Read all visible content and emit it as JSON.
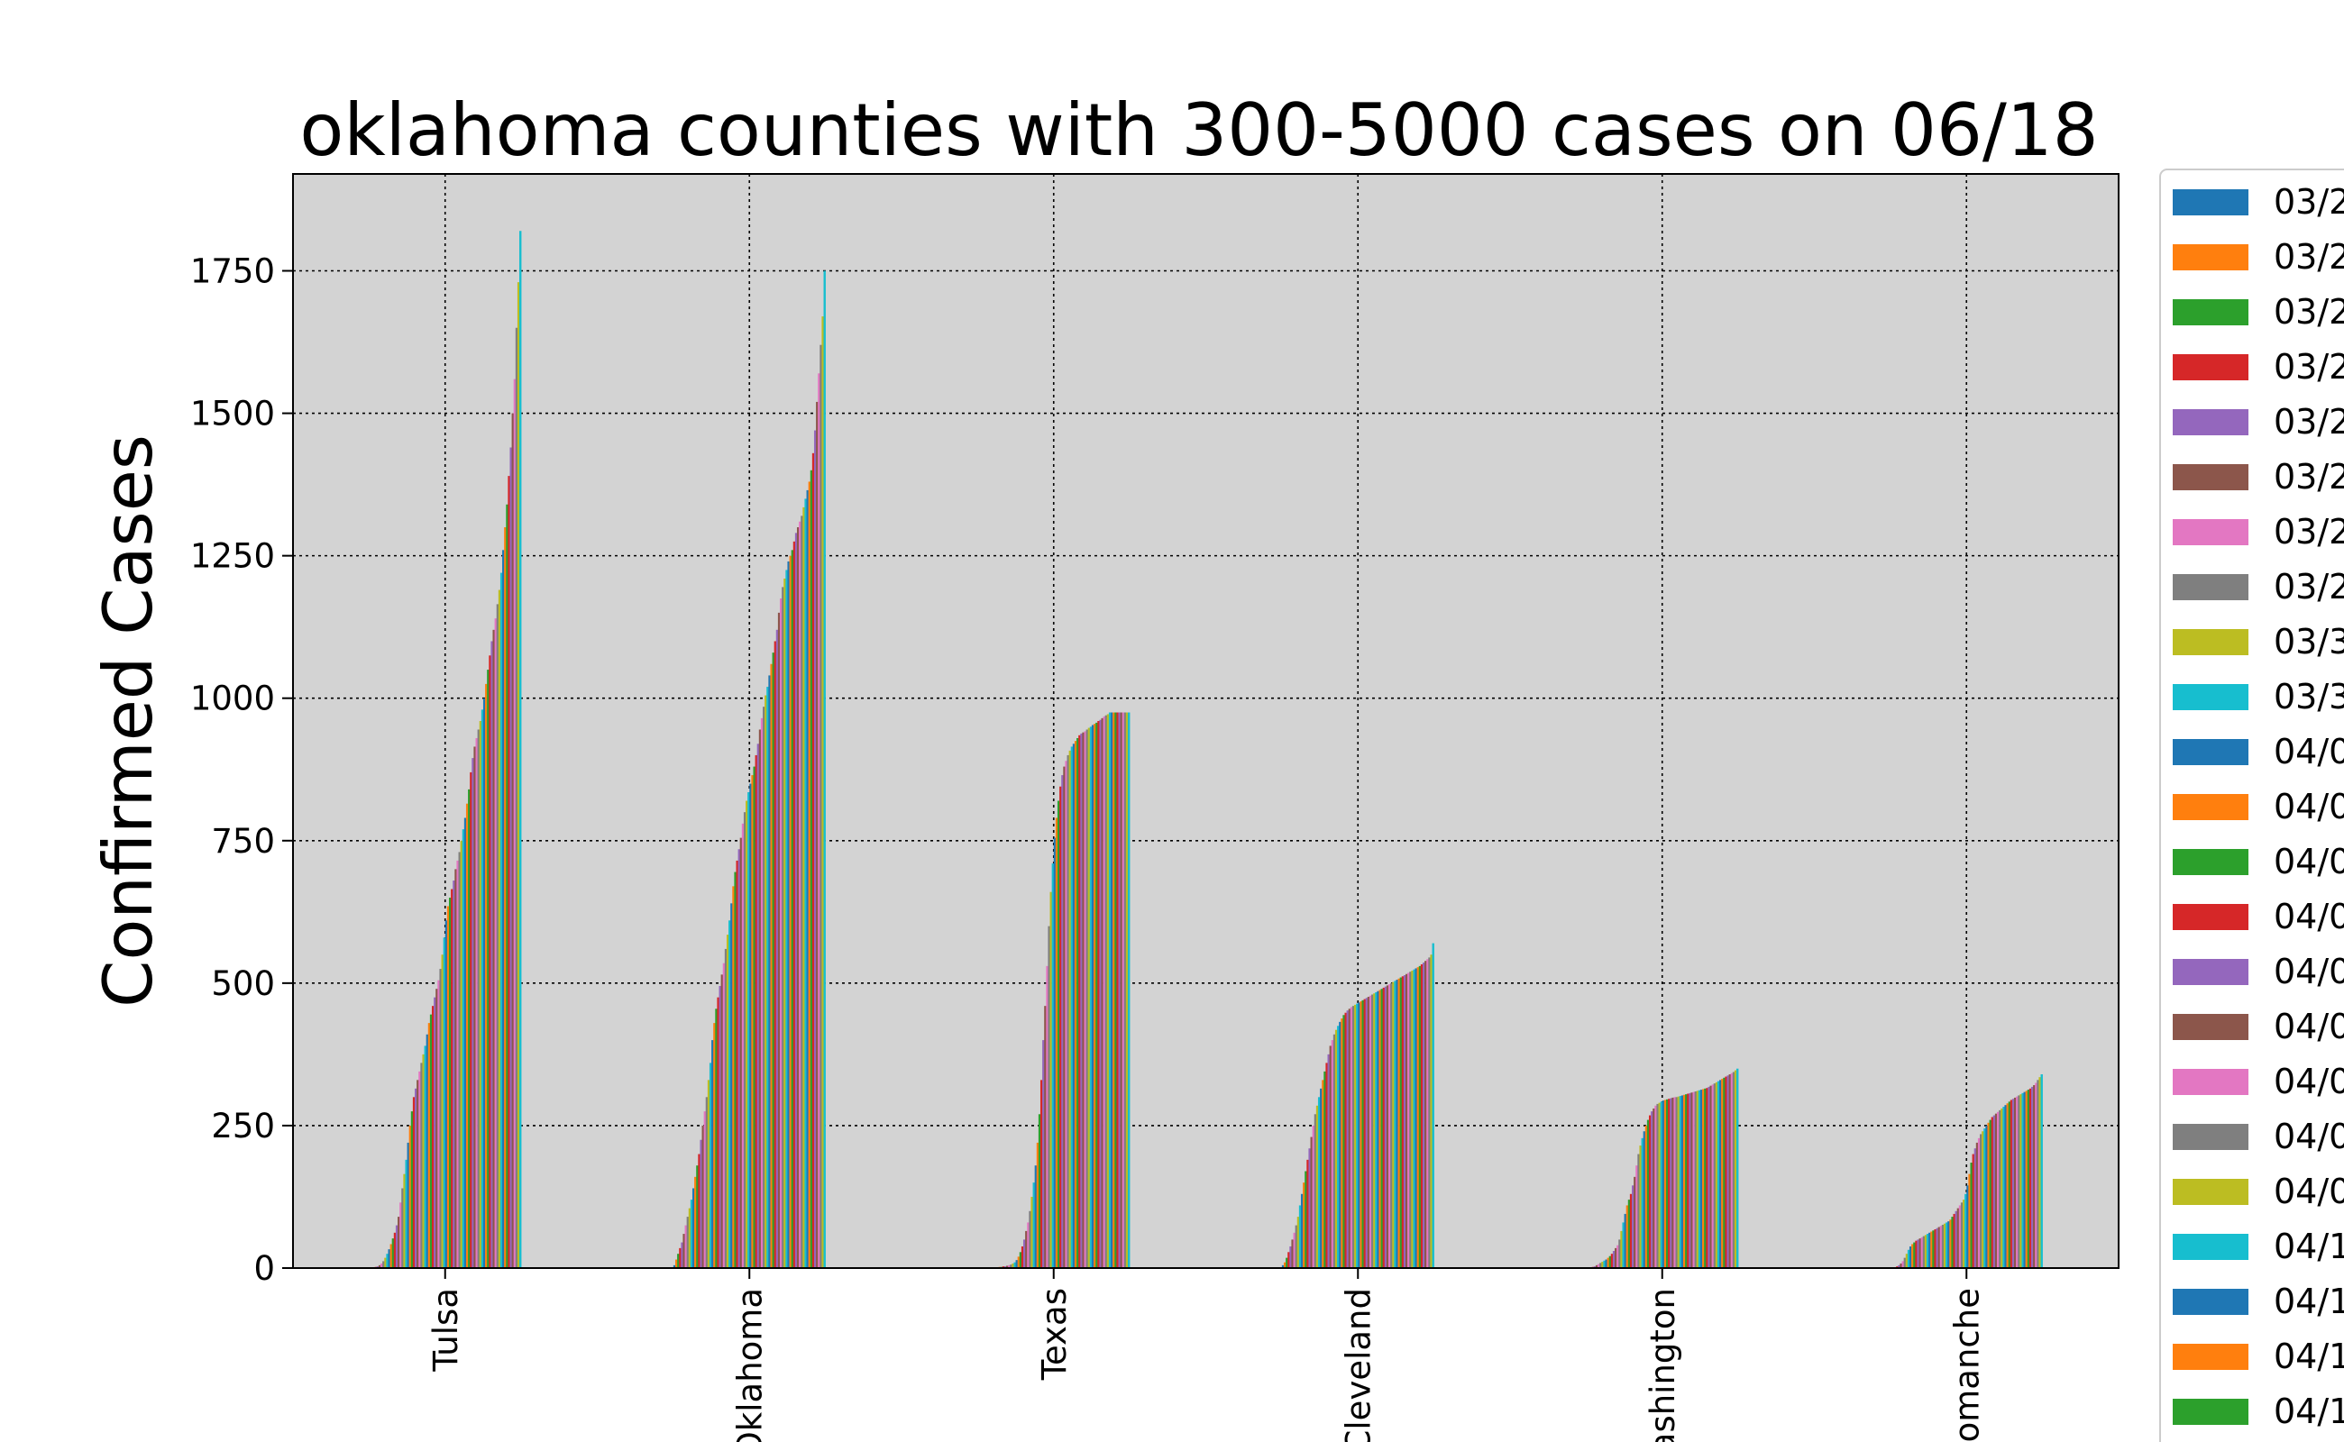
{
  "chart_data": {
    "type": "bar",
    "title": "oklahoma counties with 300-5000 cases on 06/18",
    "xlabel": "",
    "ylabel": "Confirmed Cases",
    "ylim": [
      0,
      1920
    ],
    "yticks": [
      0,
      250,
      500,
      750,
      1000,
      1250,
      1500,
      1750
    ],
    "grid": true,
    "legend_position": "right",
    "categories": [
      "Tulsa",
      "Oklahoma",
      "Texas",
      "Cleveland",
      "Washington",
      "Comanche"
    ],
    "legend_entries": [
      "03/2",
      "03/2",
      "03/2",
      "03/2",
      "03/2",
      "03/2",
      "03/2",
      "03/2",
      "03/3",
      "03/3",
      "04/0",
      "04/0",
      "04/0",
      "04/0",
      "04/0",
      "04/0",
      "04/0",
      "04/0",
      "04/0",
      "04/1",
      "04/1",
      "04/1",
      "04/1"
    ],
    "palette": [
      "#1f77b4",
      "#ff7f0e",
      "#2ca02c",
      "#d62728",
      "#9467bd",
      "#8c564b",
      "#e377c2",
      "#7f7f7f",
      "#bcbd22",
      "#17becf"
    ],
    "date_count": 80,
    "series_by_county": [
      {
        "name": "Tulsa",
        "values": [
          0,
          0,
          1,
          2,
          3,
          5,
          8,
          12,
          18,
          25,
          33,
          42,
          52,
          62,
          75,
          90,
          115,
          140,
          165,
          190,
          220,
          250,
          275,
          300,
          315,
          330,
          345,
          360,
          375,
          390,
          410,
          430,
          445,
          460,
          475,
          490,
          505,
          525,
          550,
          580,
          610,
          635,
          650,
          665,
          680,
          700,
          715,
          730,
          750,
          770,
          790,
          815,
          840,
          870,
          895,
          915,
          930,
          945,
          960,
          980,
          1000,
          1025,
          1050,
          1075,
          1100,
          1120,
          1140,
          1165,
          1190,
          1220,
          1260,
          1300,
          1340,
          1390,
          1440,
          1500,
          1560,
          1650,
          1730,
          1820
        ]
      },
      {
        "name": "Oklahoma",
        "values": [
          5,
          15,
          25,
          35,
          45,
          60,
          75,
          90,
          105,
          120,
          140,
          160,
          180,
          200,
          225,
          250,
          275,
          300,
          330,
          360,
          400,
          430,
          455,
          475,
          495,
          515,
          535,
          560,
          585,
          610,
          640,
          670,
          695,
          715,
          735,
          755,
          780,
          800,
          820,
          835,
          850,
          865,
          880,
          900,
          920,
          945,
          965,
          985,
          1005,
          1020,
          1040,
          1060,
          1080,
          1100,
          1120,
          1150,
          1175,
          1195,
          1210,
          1225,
          1240,
          1250,
          1260,
          1275,
          1290,
          1300,
          1310,
          1320,
          1335,
          1350,
          1365,
          1380,
          1400,
          1430,
          1470,
          1520,
          1570,
          1620,
          1670,
          1750
        ]
      },
      {
        "name": "Texas",
        "values": [
          0,
          0,
          0,
          0,
          0,
          0,
          0,
          0,
          0,
          1,
          1,
          2,
          2,
          3,
          3,
          4,
          5,
          6,
          8,
          10,
          14,
          20,
          28,
          38,
          50,
          65,
          80,
          100,
          125,
          150,
          180,
          220,
          270,
          330,
          400,
          460,
          530,
          600,
          660,
          710,
          755,
          790,
          820,
          845,
          865,
          880,
          890,
          900,
          908,
          915,
          920,
          925,
          930,
          935,
          938,
          940,
          942,
          945,
          948,
          950,
          953,
          955,
          957,
          960,
          962,
          965,
          968,
          970,
          972,
          975,
          975,
          975,
          975,
          975,
          975,
          975,
          975,
          975,
          975,
          975
        ]
      },
      {
        "name": "Cleveland",
        "values": [
          5,
          10,
          18,
          28,
          38,
          50,
          62,
          75,
          90,
          110,
          130,
          150,
          170,
          190,
          210,
          230,
          250,
          270,
          285,
          300,
          315,
          330,
          345,
          360,
          375,
          390,
          400,
          410,
          418,
          425,
          432,
          438,
          444,
          448,
          452,
          455,
          458,
          460,
          462,
          464,
          466,
          468,
          470,
          472,
          474,
          476,
          478,
          480,
          482,
          484,
          486,
          488,
          490,
          492,
          494,
          496,
          498,
          500,
          502,
          504,
          506,
          508,
          510,
          512,
          514,
          516,
          518,
          520,
          522,
          524,
          526,
          528,
          530,
          533,
          536,
          539,
          542,
          545,
          550,
          570
        ]
      },
      {
        "name": "Washington",
        "values": [
          0,
          0,
          1,
          2,
          3,
          5,
          7,
          9,
          11,
          13,
          15,
          18,
          21,
          25,
          30,
          35,
          40,
          50,
          65,
          80,
          95,
          110,
          120,
          130,
          145,
          160,
          180,
          200,
          215,
          228,
          240,
          250,
          260,
          268,
          275,
          280,
          285,
          288,
          290,
          292,
          294,
          295,
          296,
          297,
          298,
          299,
          300,
          300,
          301,
          302,
          303,
          304,
          305,
          306,
          307,
          308,
          309,
          310,
          311,
          312,
          313,
          314,
          315,
          316,
          318,
          320,
          322,
          324,
          326,
          328,
          330,
          332,
          334,
          336,
          338,
          340,
          342,
          344,
          347,
          350
        ]
      },
      {
        "name": "Comanche",
        "values": [
          0,
          0,
          1,
          3,
          5,
          8,
          12,
          18,
          25,
          32,
          38,
          42,
          45,
          48,
          50,
          52,
          54,
          56,
          58,
          60,
          62,
          64,
          66,
          68,
          70,
          72,
          74,
          76,
          78,
          80,
          82,
          85,
          90,
          95,
          100,
          105,
          110,
          115,
          120,
          130,
          145,
          165,
          185,
          200,
          210,
          220,
          228,
          235,
          240,
          245,
          250,
          255,
          260,
          265,
          268,
          271,
          274,
          277,
          280,
          283,
          286,
          289,
          292,
          295,
          297,
          299,
          301,
          303,
          305,
          307,
          309,
          311,
          313,
          315,
          318,
          321,
          325,
          330,
          335,
          340
        ]
      }
    ]
  }
}
